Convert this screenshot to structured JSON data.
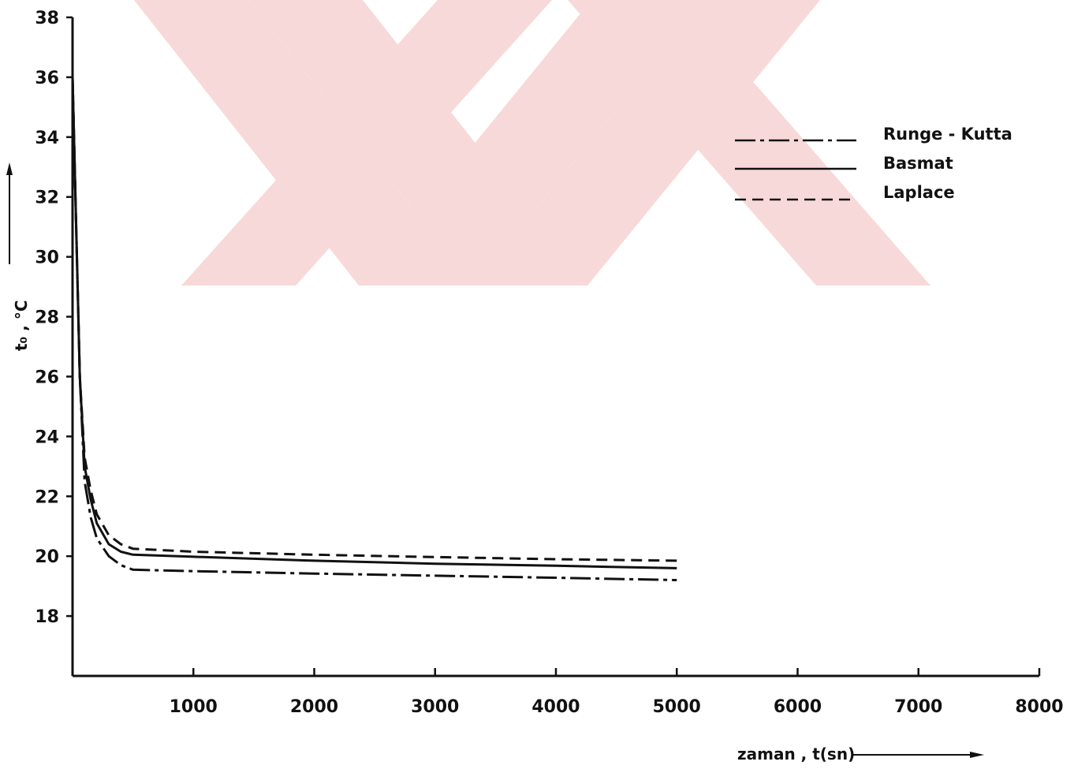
{
  "chart_data": {
    "type": "line",
    "xlabel": "zaman , t(sn)",
    "ylabel": "t₀ , °C",
    "xlim": [
      0,
      8000
    ],
    "ylim": [
      16,
      38
    ],
    "x_ticks": [
      1000,
      2000,
      3000,
      4000,
      5000,
      6000,
      7000,
      8000
    ],
    "y_ticks": [
      18,
      20,
      22,
      24,
      26,
      28,
      30,
      32,
      34,
      36,
      38
    ],
    "grid": false,
    "legend_position": "top-right",
    "series": [
      {
        "name": "Runge - Kutta",
        "line_style": "dash-dot",
        "x": [
          0,
          30,
          60,
          100,
          150,
          200,
          300,
          400,
          500,
          1000,
          2000,
          3000,
          4000,
          5000
        ],
        "y": [
          36,
          31,
          26,
          22.5,
          21.3,
          20.6,
          20.0,
          19.7,
          19.55,
          19.5,
          19.42,
          19.35,
          19.28,
          19.2
        ]
      },
      {
        "name": "Basmat",
        "line_style": "solid",
        "x": [
          0,
          30,
          60,
          100,
          150,
          200,
          300,
          400,
          500,
          1000,
          2000,
          3000,
          4000,
          5000
        ],
        "y": [
          36,
          31,
          26,
          23.0,
          21.9,
          21.1,
          20.4,
          20.15,
          20.05,
          19.98,
          19.85,
          19.75,
          19.68,
          19.6
        ]
      },
      {
        "name": "Laplace",
        "line_style": "dashed",
        "x": [
          0,
          30,
          60,
          100,
          150,
          200,
          300,
          400,
          500,
          1000,
          2000,
          3000,
          4000,
          5000
        ],
        "y": [
          36,
          31,
          26,
          23.3,
          22.2,
          21.4,
          20.7,
          20.4,
          20.25,
          20.15,
          20.05,
          19.97,
          19.9,
          19.85
        ]
      }
    ]
  },
  "colors": {
    "line": "#111111",
    "watermark": "#f8d9d9"
  }
}
